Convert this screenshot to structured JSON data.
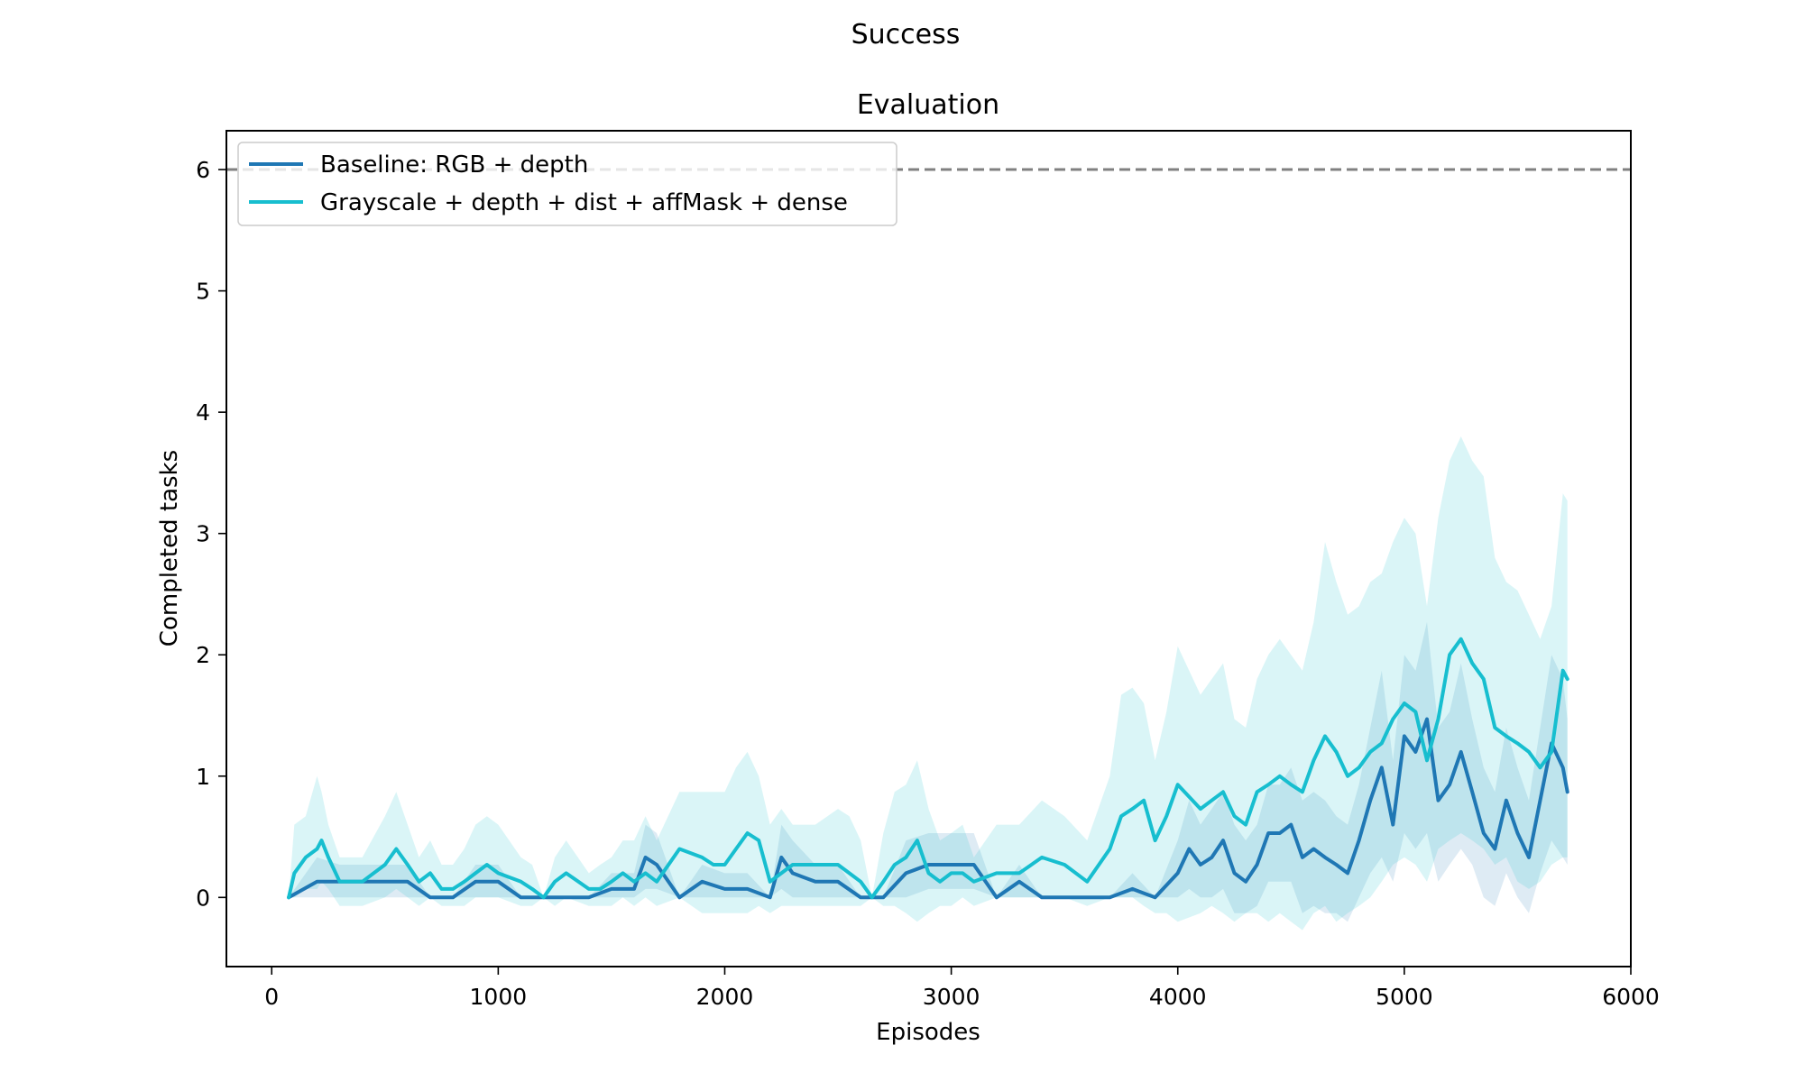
{
  "figure": {
    "suptitle": "Success"
  },
  "chart_data": {
    "type": "line",
    "title": "Evaluation",
    "xlabel": "Episodes",
    "ylabel": "Completed tasks",
    "xlim": [
      -200,
      6000
    ],
    "ylim": [
      -0.57,
      6.32
    ],
    "xticks": [
      0,
      1000,
      2000,
      3000,
      4000,
      5000,
      6000
    ],
    "yticks": [
      0,
      1,
      2,
      3,
      4,
      5,
      6
    ],
    "grid": false,
    "legend_position": "upper-left",
    "reference_line": {
      "y": 6,
      "style": "dashed",
      "color": "#808080"
    },
    "series": [
      {
        "name": "Baseline: RGB + depth",
        "color": "#1f77b4",
        "x": [
          75,
          200,
          300,
          400,
          500,
          600,
          700,
          800,
          900,
          1000,
          1100,
          1200,
          1300,
          1400,
          1500,
          1600,
          1650,
          1700,
          1800,
          1900,
          2000,
          2100,
          2200,
          2250,
          2300,
          2400,
          2500,
          2600,
          2700,
          2800,
          2900,
          3000,
          3100,
          3200,
          3300,
          3400,
          3500,
          3600,
          3700,
          3800,
          3900,
          4000,
          4050,
          4100,
          4150,
          4200,
          4250,
          4300,
          4350,
          4400,
          4450,
          4500,
          4550,
          4600,
          4650,
          4700,
          4750,
          4800,
          4850,
          4900,
          4950,
          5000,
          5050,
          5100,
          5150,
          5200,
          5250,
          5300,
          5350,
          5400,
          5450,
          5500,
          5550,
          5600,
          5650,
          5700,
          5720
        ],
        "values": [
          0,
          0.13,
          0.13,
          0.13,
          0.13,
          0.13,
          0,
          0,
          0.13,
          0.13,
          0,
          0,
          0,
          0,
          0.07,
          0.07,
          0.33,
          0.27,
          0,
          0.13,
          0.07,
          0.07,
          0,
          0.33,
          0.2,
          0.13,
          0.13,
          0,
          0,
          0.2,
          0.27,
          0.27,
          0.27,
          0,
          0.13,
          0,
          0,
          0,
          0,
          0.07,
          0,
          0.2,
          0.4,
          0.27,
          0.33,
          0.47,
          0.2,
          0.13,
          0.27,
          0.53,
          0.53,
          0.6,
          0.33,
          0.4,
          0.33,
          0.27,
          0.2,
          0.47,
          0.8,
          1.07,
          0.6,
          1.33,
          1.2,
          1.47,
          0.8,
          0.93,
          1.2,
          0.87,
          0.53,
          0.4,
          0.8,
          0.53,
          0.33,
          0.8,
          1.27,
          1.07,
          0.87
        ],
        "band_low": [
          0,
          0,
          0,
          0,
          0,
          0,
          0,
          0,
          0,
          0,
          0,
          0,
          0,
          0,
          0,
          0,
          0.07,
          0.07,
          0,
          0,
          0,
          0,
          0,
          0.07,
          0,
          0,
          0,
          0,
          0,
          0,
          0.07,
          0.07,
          0.07,
          0,
          0,
          0,
          0,
          0,
          0,
          0,
          0,
          0,
          0.07,
          0,
          0,
          0.07,
          -0.13,
          -0.13,
          -0.07,
          0.13,
          0.13,
          0.13,
          -0.13,
          -0.07,
          -0.13,
          -0.13,
          -0.2,
          0,
          0.2,
          0.33,
          0.13,
          0.53,
          0.4,
          0.53,
          0.13,
          0.27,
          0.4,
          0.27,
          0,
          -0.07,
          0.2,
          0,
          -0.13,
          0.2,
          0.47,
          0.33,
          0.27
        ],
        "band_high": [
          0,
          0.33,
          0.27,
          0.27,
          0.27,
          0.27,
          0,
          0,
          0.27,
          0.27,
          0,
          0,
          0,
          0,
          0.2,
          0.2,
          0.6,
          0.53,
          0,
          0.27,
          0.2,
          0.2,
          0,
          0.6,
          0.47,
          0.27,
          0.27,
          0,
          0,
          0.47,
          0.53,
          0.53,
          0.53,
          0,
          0.27,
          0,
          0,
          0,
          0,
          0.2,
          0,
          0.47,
          0.8,
          0.6,
          0.73,
          0.87,
          0.6,
          0.47,
          0.6,
          0.93,
          0.93,
          1.07,
          0.8,
          0.87,
          0.8,
          0.67,
          0.6,
          0.93,
          1.4,
          1.87,
          1.13,
          2.0,
          1.87,
          2.27,
          1.4,
          1.53,
          1.93,
          1.47,
          1.07,
          0.87,
          1.4,
          1.07,
          0.8,
          1.4,
          2.0,
          1.8,
          1.47
        ]
      },
      {
        "name": "Grayscale + depth + dist + affMask + dense",
        "color": "#17becf",
        "x": [
          75,
          100,
          150,
          200,
          220,
          250,
          300,
          350,
          400,
          500,
          550,
          600,
          650,
          700,
          750,
          800,
          850,
          900,
          950,
          1000,
          1100,
          1150,
          1200,
          1250,
          1300,
          1400,
          1450,
          1500,
          1550,
          1600,
          1650,
          1700,
          1800,
          1900,
          1950,
          2000,
          2050,
          2100,
          2150,
          2200,
          2250,
          2300,
          2400,
          2500,
          2550,
          2600,
          2650,
          2700,
          2750,
          2800,
          2850,
          2900,
          2950,
          3000,
          3050,
          3100,
          3200,
          3300,
          3400,
          3500,
          3600,
          3700,
          3750,
          3800,
          3850,
          3900,
          3950,
          4000,
          4100,
          4150,
          4200,
          4250,
          4300,
          4350,
          4400,
          4450,
          4500,
          4550,
          4600,
          4650,
          4700,
          4750,
          4800,
          4850,
          4900,
          4950,
          5000,
          5050,
          5100,
          5150,
          5200,
          5250,
          5300,
          5350,
          5400,
          5450,
          5500,
          5550,
          5600,
          5650,
          5700,
          5720
        ],
        "values": [
          0,
          0.2,
          0.33,
          0.4,
          0.47,
          0.33,
          0.13,
          0.13,
          0.13,
          0.27,
          0.4,
          0.27,
          0.13,
          0.2,
          0.07,
          0.07,
          0.13,
          0.2,
          0.27,
          0.2,
          0.13,
          0.07,
          0,
          0.13,
          0.2,
          0.07,
          0.07,
          0.13,
          0.2,
          0.13,
          0.2,
          0.13,
          0.4,
          0.33,
          0.27,
          0.27,
          0.4,
          0.53,
          0.47,
          0.13,
          0.2,
          0.27,
          0.27,
          0.27,
          0.2,
          0.13,
          0,
          0.13,
          0.27,
          0.33,
          0.47,
          0.2,
          0.13,
          0.2,
          0.2,
          0.13,
          0.2,
          0.2,
          0.33,
          0.27,
          0.13,
          0.4,
          0.67,
          0.73,
          0.8,
          0.47,
          0.67,
          0.93,
          0.73,
          0.8,
          0.87,
          0.67,
          0.6,
          0.87,
          0.93,
          1.0,
          0.93,
          0.87,
          1.13,
          1.33,
          1.2,
          1.0,
          1.07,
          1.2,
          1.27,
          1.47,
          1.6,
          1.53,
          1.13,
          1.47,
          2.0,
          2.13,
          1.93,
          1.8,
          1.4,
          1.33,
          1.27,
          1.2,
          1.07,
          1.2,
          1.87,
          1.8
        ],
        "band_low": [
          0,
          0,
          0.07,
          0.07,
          0.13,
          0.07,
          -0.07,
          -0.07,
          -0.07,
          0,
          0.07,
          0,
          -0.07,
          0,
          -0.07,
          -0.07,
          -0.07,
          0,
          0,
          0,
          -0.07,
          -0.07,
          0,
          -0.07,
          0,
          -0.07,
          -0.07,
          -0.07,
          0,
          -0.07,
          0,
          -0.07,
          0,
          -0.13,
          -0.13,
          -0.13,
          -0.13,
          -0.13,
          -0.07,
          -0.13,
          -0.07,
          -0.07,
          -0.07,
          -0.07,
          -0.07,
          -0.07,
          0,
          -0.07,
          -0.07,
          -0.13,
          -0.2,
          -0.13,
          -0.07,
          -0.07,
          0,
          -0.07,
          0,
          0,
          0,
          0,
          -0.07,
          0,
          0,
          0,
          -0.07,
          -0.13,
          -0.13,
          -0.2,
          -0.13,
          -0.07,
          -0.13,
          -0.2,
          -0.13,
          -0.13,
          -0.2,
          -0.13,
          -0.2,
          -0.27,
          -0.13,
          -0.07,
          -0.2,
          -0.13,
          -0.07,
          0,
          0.13,
          0.27,
          0.33,
          0.27,
          0.13,
          0.4,
          0.47,
          0.53,
          0.47,
          0.4,
          0.27,
          0.33,
          0.13,
          0.07,
          0.13,
          0.27,
          0.33,
          0.33
        ],
        "band_high": [
          0,
          0.6,
          0.67,
          1.0,
          0.87,
          0.6,
          0.33,
          0.33,
          0.33,
          0.67,
          0.87,
          0.6,
          0.33,
          0.47,
          0.27,
          0.27,
          0.4,
          0.6,
          0.67,
          0.6,
          0.33,
          0.27,
          0,
          0.33,
          0.47,
          0.2,
          0.27,
          0.33,
          0.47,
          0.47,
          0.67,
          0.47,
          0.87,
          0.87,
          0.87,
          0.87,
          1.07,
          1.2,
          1.0,
          0.6,
          0.73,
          0.6,
          0.6,
          0.73,
          0.67,
          0.47,
          0,
          0.53,
          0.87,
          0.93,
          1.13,
          0.73,
          0.47,
          0.53,
          0.6,
          0.33,
          0.6,
          0.6,
          0.8,
          0.67,
          0.47,
          1.0,
          1.67,
          1.73,
          1.6,
          1.13,
          1.53,
          2.07,
          1.67,
          1.8,
          1.93,
          1.47,
          1.4,
          1.8,
          2.0,
          2.13,
          2.0,
          1.87,
          2.27,
          2.93,
          2.6,
          2.33,
          2.4,
          2.6,
          2.67,
          2.93,
          3.13,
          3.0,
          2.4,
          3.13,
          3.6,
          3.8,
          3.6,
          3.47,
          2.8,
          2.6,
          2.53,
          2.33,
          2.13,
          2.4,
          3.33,
          3.27
        ]
      }
    ]
  }
}
